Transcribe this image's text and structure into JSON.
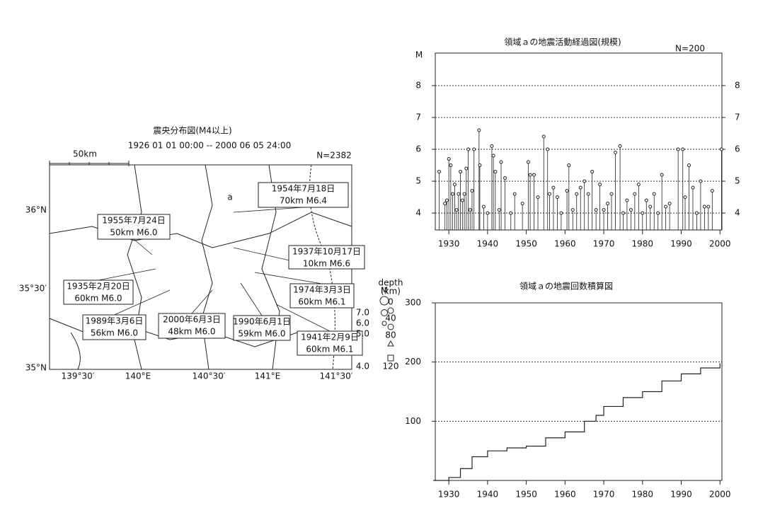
{
  "map": {
    "title": "震央分布図(M4以上)",
    "period": "1926 01 01 00:00 -- 2000 06 05 24:00",
    "count": "N=2382",
    "scale": "50km",
    "region": "a",
    "lat_labels": [
      "36°N",
      "35°30′",
      "35°N"
    ],
    "lon_labels": [
      "139°30′",
      "140°E",
      "140°30′",
      "141°E",
      "141°30′"
    ],
    "annotations": [
      {
        "lines": [
          "1954年7月18日",
          "70km  M6.4"
        ]
      },
      {
        "lines": [
          "1955年7月24日",
          "50km  M6.0"
        ]
      },
      {
        "lines": [
          "1937年10月17日",
          "10km  M6.6"
        ]
      },
      {
        "lines": [
          "1935年2月20日",
          "60km  M6.0"
        ]
      },
      {
        "lines": [
          "1974年3月3日",
          "60km  M6.1"
        ]
      },
      {
        "lines": [
          "1989年3月6日",
          "56km  M6.0"
        ]
      },
      {
        "lines": [
          "2000年6月3日",
          "48km  M6.0"
        ]
      },
      {
        "lines": [
          "1990年6月1日",
          "59km  M6.0"
        ]
      },
      {
        "lines": [
          "1941年2月9日",
          "60km  M6.1"
        ]
      }
    ],
    "depth_legend": {
      "title": [
        "depth",
        "(km)"
      ],
      "labels": [
        "0",
        "40",
        "80",
        "120"
      ]
    },
    "magnitude_legend": {
      "title": "M",
      "labels": [
        "7.0",
        "6.0",
        "5.0",
        "4.0"
      ]
    }
  },
  "chart_data": [
    {
      "type": "stem",
      "title": "領域ａの地震活動経過図(規模)",
      "y_label": "M",
      "note": "N=200",
      "color": "#222222",
      "x": [
        1927.5,
        1929,
        1929.5,
        1930,
        1930.5,
        1931,
        1931.5,
        1932,
        1932.5,
        1933,
        1933.5,
        1934,
        1934.5,
        1935,
        1935.5,
        1936,
        1936.5,
        1937.8,
        1938,
        1939,
        1940,
        1941.1,
        1941.5,
        1942,
        1943,
        1943.5,
        1944.5,
        1946,
        1947,
        1949,
        1950.5,
        1951,
        1952,
        1953,
        1954.5,
        1955.5,
        1956,
        1957,
        1958,
        1959,
        1960.5,
        1961,
        1962,
        1963,
        1964,
        1965,
        1966,
        1967,
        1968,
        1969,
        1970,
        1971,
        1972,
        1973,
        1974.2,
        1975,
        1976,
        1977,
        1978,
        1979,
        1980,
        1981,
        1982,
        1983,
        1984,
        1985,
        1986,
        1987,
        1989.2,
        1990.4,
        1991,
        1992,
        1993,
        1994,
        1995,
        1996,
        1997,
        1998,
        2000.4
      ],
      "values": [
        5.3,
        4.3,
        4.4,
        5.7,
        5.5,
        4.6,
        4.9,
        4.1,
        4.6,
        5.3,
        4.4,
        4.6,
        5.4,
        6.0,
        4.1,
        4.7,
        6.0,
        6.6,
        5.5,
        4.2,
        4.0,
        6.1,
        5.8,
        5.3,
        4.1,
        5.6,
        5.1,
        4.0,
        4.6,
        4.3,
        5.6,
        5.2,
        5.2,
        4.5,
        6.4,
        6.0,
        4.6,
        4.8,
        4.5,
        4.0,
        4.7,
        5.5,
        4.1,
        4.6,
        4.8,
        5.0,
        4.6,
        5.3,
        4.1,
        4.9,
        4.1,
        4.3,
        4.6,
        5.9,
        6.1,
        4.0,
        4.4,
        4.1,
        4.6,
        4.9,
        4.0,
        4.4,
        4.2,
        4.6,
        4.0,
        5.2,
        4.2,
        4.3,
        6.0,
        6.0,
        4.5,
        5.5,
        4.8,
        4.0,
        5.0,
        4.2,
        4.2,
        4.7,
        6.0
      ],
      "xlim": [
        1926.5,
        2000.5
      ],
      "ylim": [
        3.47,
        9.02
      ],
      "xticks": [
        1930,
        1940,
        1950,
        1960,
        1970,
        1980,
        1990,
        2000
      ],
      "yticks": [
        4,
        5,
        6,
        7,
        8
      ],
      "grid": true,
      "right_axis_labels": true
    },
    {
      "type": "line",
      "title": "領域ａの地震回数積算図",
      "color": "#222222",
      "step": true,
      "x": [
        1926,
        1930,
        1933,
        1936,
        1940,
        1945,
        1950,
        1955,
        1960,
        1965,
        1968,
        1970,
        1975,
        1980,
        1985,
        1990,
        1995,
        2000
      ],
      "values": [
        0,
        5,
        20,
        40,
        50,
        55,
        58,
        72,
        82,
        100,
        110,
        125,
        140,
        150,
        168,
        180,
        190,
        198
      ],
      "xlim": [
        1926.5,
        2000.5
      ],
      "ylim": [
        0,
        300
      ],
      "xticks": [
        1930,
        1940,
        1950,
        1960,
        1970,
        1980,
        1990,
        2000
      ],
      "yticks": [
        100,
        200,
        300
      ],
      "grid": true
    }
  ]
}
